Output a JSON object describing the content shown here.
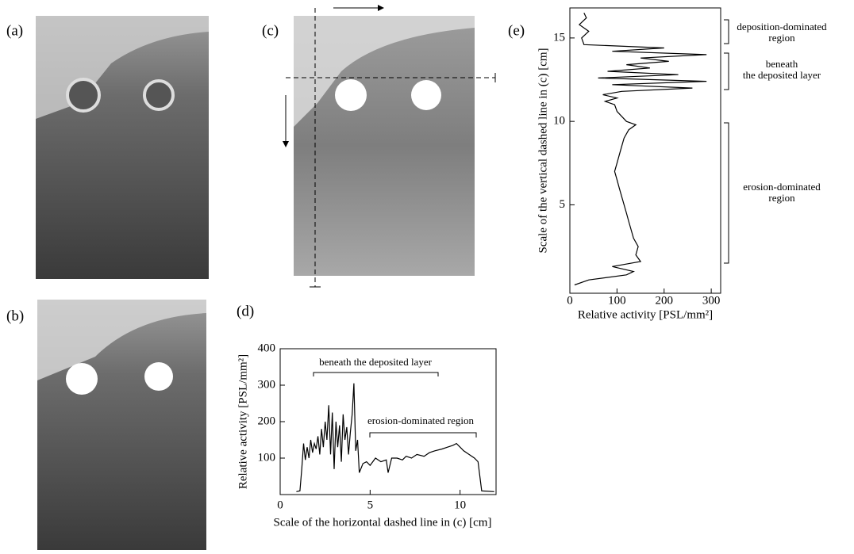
{
  "panel_labels": [
    "(a)",
    "(b)",
    "(c)",
    "(d)",
    "(e)"
  ],
  "chart_data": [
    {
      "type": "line",
      "orientation": "horizontal",
      "xlabel": "Scale of the horizontal dashed line in (c) [cm]",
      "ylabel": "Relative activity [PSL/mm²]",
      "xlim": [
        0,
        12
      ],
      "ylim": [
        0,
        400
      ],
      "xticks": [
        0,
        5,
        10
      ],
      "yticks": [
        100,
        200,
        300,
        400
      ],
      "color": "#000000",
      "x": [
        0.9,
        1.1,
        1.2,
        1.3,
        1.4,
        1.5,
        1.6,
        1.7,
        1.8,
        1.9,
        2.0,
        2.1,
        2.2,
        2.3,
        2.4,
        2.5,
        2.6,
        2.7,
        2.8,
        2.9,
        3.0,
        3.1,
        3.2,
        3.3,
        3.4,
        3.5,
        3.6,
        3.7,
        3.8,
        3.9,
        4.0,
        4.1,
        4.2,
        4.3,
        4.4,
        4.6,
        4.8,
        5.0,
        5.3,
        5.6,
        5.9,
        6.0,
        6.2,
        6.5,
        6.8,
        7.0,
        7.3,
        7.6,
        8.0,
        8.3,
        8.6,
        9.0,
        9.3,
        9.6,
        9.8,
        10.0,
        10.2,
        10.5,
        10.8,
        11.0,
        11.1,
        11.2,
        11.9
      ],
      "values": [
        8,
        10,
        70,
        140,
        95,
        130,
        100,
        150,
        115,
        140,
        125,
        160,
        110,
        180,
        130,
        200,
        150,
        245,
        110,
        225,
        70,
        200,
        130,
        190,
        90,
        220,
        150,
        185,
        110,
        170,
        220,
        305,
        120,
        150,
        60,
        85,
        90,
        80,
        100,
        90,
        95,
        60,
        100,
        100,
        95,
        105,
        100,
        110,
        105,
        115,
        120,
        125,
        130,
        135,
        140,
        130,
        120,
        110,
        100,
        90,
        50,
        10,
        8
      ],
      "annotations": [
        {
          "lines": [
            "beneath the deposited layer"
          ]
        },
        {
          "lines": [
            "erosion-dominated region"
          ]
        }
      ]
    },
    {
      "type": "line",
      "orientation": "vertical",
      "xlabel": "Scale of the vertical dashed line in (c) [cm]",
      "ylabel": "Relative activity [PSL/mm²]",
      "xlim": [
        -0.3,
        16.8
      ],
      "ylim": [
        0,
        320
      ],
      "xticks": [
        5,
        10,
        15
      ],
      "yticks": [
        0,
        100,
        200,
        300
      ],
      "color": "#000000",
      "x": [
        0.2,
        0.5,
        0.8,
        1.0,
        1.3,
        1.6,
        2.0,
        2.5,
        3.0,
        3.5,
        4.0,
        4.5,
        5.0,
        5.5,
        6.0,
        6.5,
        7.0,
        7.5,
        8.0,
        8.5,
        9.0,
        9.5,
        9.8,
        10.0,
        10.3,
        10.6,
        11.0,
        11.2,
        11.4,
        11.6,
        11.8,
        12.0,
        12.2,
        12.4,
        12.6,
        12.8,
        13.0,
        13.2,
        13.4,
        13.6,
        13.8,
        14.0,
        14.2,
        14.4,
        14.6,
        15.0,
        15.4,
        15.8,
        16.2,
        16.5
      ],
      "values": [
        10,
        40,
        120,
        135,
        90,
        150,
        140,
        145,
        135,
        130,
        125,
        120,
        115,
        110,
        105,
        100,
        95,
        100,
        105,
        110,
        115,
        125,
        140,
        120,
        110,
        100,
        95,
        75,
        100,
        70,
        110,
        260,
        90,
        290,
        60,
        230,
        80,
        170,
        120,
        210,
        150,
        290,
        90,
        200,
        30,
        25,
        40,
        20,
        35,
        30
      ],
      "annotations": [
        {
          "lines": [
            "deposition-dominated",
            "region"
          ]
        },
        {
          "lines": [
            "beneath",
            "the deposited layer"
          ]
        },
        {
          "lines": [
            "erosion-dominated",
            "region"
          ]
        }
      ]
    }
  ]
}
